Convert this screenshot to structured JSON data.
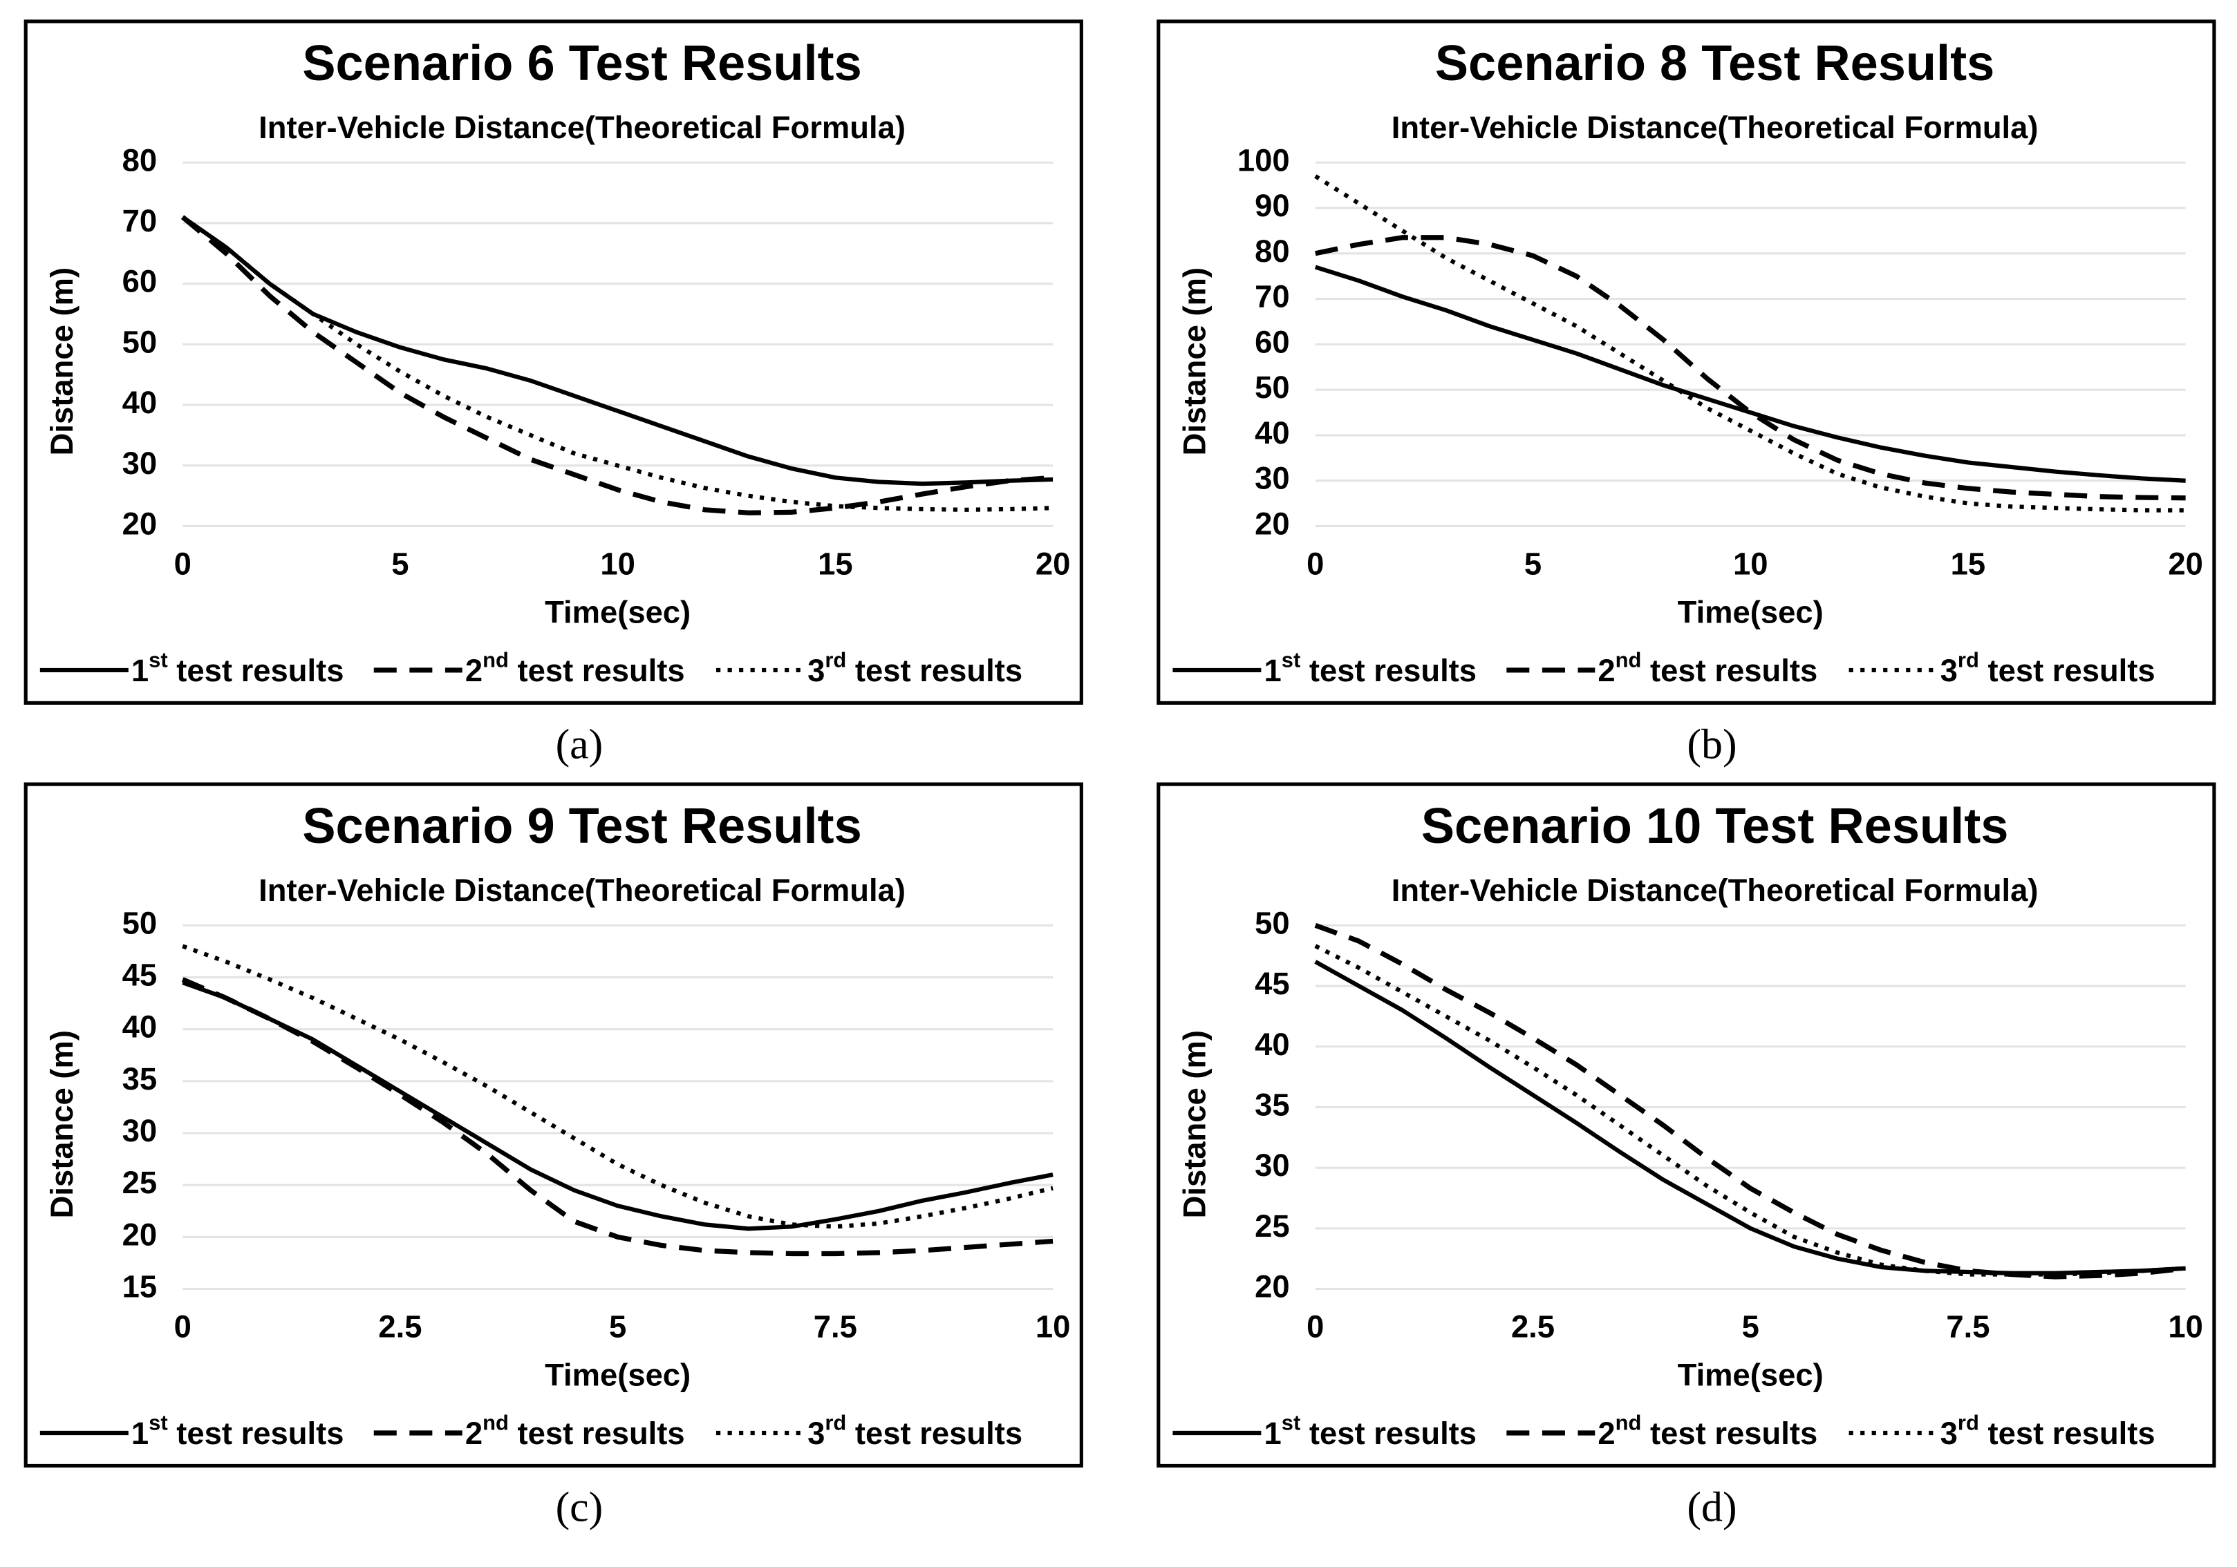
{
  "chart_data": [
    {
      "type": "line",
      "title": "Scenario 6 Test Results",
      "subtitle": "Inter-Vehicle Distance(Theoretical Formula)",
      "caption": "(a)",
      "x_label": "Time(sec)",
      "y_label": "Distance (m)",
      "x": [
        0,
        1,
        2,
        3,
        4,
        5,
        6,
        7,
        8,
        9,
        10,
        11,
        12,
        13,
        14,
        15,
        16,
        17,
        18,
        19,
        20
      ],
      "xlim": [
        0,
        20
      ],
      "xticks": [
        0,
        5,
        10,
        15,
        20
      ],
      "ylim": [
        20,
        80
      ],
      "yticks": [
        20,
        30,
        40,
        50,
        60,
        70,
        80
      ],
      "grid": true,
      "legend": "bottom",
      "series": [
        {
          "name": "1st test results",
          "color": "#000000",
          "style": "solid",
          "values": [
            71,
            66,
            60,
            55,
            52,
            49.5,
            47.5,
            46,
            44,
            41.5,
            39,
            36.5,
            34,
            31.5,
            29.5,
            28,
            27.3,
            27,
            27.2,
            27.5,
            27.7
          ]
        },
        {
          "name": "2nd test results",
          "color": "#000000",
          "style": "dashed",
          "values": [
            71,
            65,
            58,
            52,
            47,
            42,
            38,
            34.5,
            31,
            28.5,
            26,
            24,
            22.7,
            22.2,
            22.3,
            23,
            24,
            25.3,
            26.5,
            27.5,
            28
          ]
        },
        {
          "name": "3rd test results",
          "color": "#000000",
          "style": "dotted",
          "values": [
            71,
            66,
            60,
            55,
            50,
            45.5,
            41.5,
            38,
            35,
            32,
            30,
            28,
            26.3,
            25,
            24,
            23.3,
            23,
            22.8,
            22.7,
            22.8,
            23
          ]
        }
      ]
    },
    {
      "type": "line",
      "title": "Scenario 8 Test Results",
      "subtitle": "Inter-Vehicle Distance(Theoretical Formula)",
      "caption": "(b)",
      "x_label": "Time(sec)",
      "y_label": "Distance (m)",
      "x": [
        0,
        1,
        2,
        3,
        4,
        5,
        6,
        7,
        8,
        9,
        10,
        11,
        12,
        13,
        14,
        15,
        16,
        17,
        18,
        19,
        20
      ],
      "xlim": [
        0,
        20
      ],
      "xticks": [
        0,
        5,
        10,
        15,
        20
      ],
      "ylim": [
        20,
        100
      ],
      "yticks": [
        20,
        30,
        40,
        50,
        60,
        70,
        80,
        90,
        100
      ],
      "grid": true,
      "legend": "bottom",
      "series": [
        {
          "name": "1st test results",
          "color": "#000000",
          "style": "solid",
          "values": [
            77,
            74,
            70.5,
            67.5,
            64,
            61,
            58,
            54.5,
            51,
            48,
            45,
            42,
            39.5,
            37.3,
            35.5,
            34,
            33,
            32,
            31.2,
            30.5,
            30
          ]
        },
        {
          "name": "2nd test results",
          "color": "#000000",
          "style": "dashed",
          "values": [
            80,
            82,
            83.5,
            83.5,
            82,
            79.5,
            75,
            68.5,
            61,
            52.5,
            45,
            39,
            34.5,
            31.5,
            29.5,
            28.3,
            27.5,
            27,
            26.5,
            26.3,
            26.2
          ]
        },
        {
          "name": "3rd test results",
          "color": "#000000",
          "style": "dotted",
          "values": [
            97,
            91,
            85,
            79,
            74,
            69,
            64,
            58,
            52,
            46,
            41,
            36,
            31.5,
            28.5,
            26.5,
            25,
            24.3,
            24,
            23.7,
            23.5,
            23.5
          ]
        }
      ]
    },
    {
      "type": "line",
      "title": "Scenario 9 Test Results",
      "subtitle": "Inter-Vehicle Distance(Theoretical Formula)",
      "caption": "(c)",
      "x_label": "Time(sec)",
      "y_label": "Distance (m)",
      "x": [
        0,
        0.5,
        1,
        1.5,
        2,
        2.5,
        3,
        3.5,
        4,
        4.5,
        5,
        5.5,
        6,
        6.5,
        7,
        7.5,
        8,
        8.5,
        9,
        9.5,
        10
      ],
      "xlim": [
        0,
        10
      ],
      "xticks": [
        0,
        2.5,
        5,
        7.5,
        10
      ],
      "ylim": [
        15,
        50
      ],
      "yticks": [
        15,
        20,
        25,
        30,
        35,
        40,
        45,
        50
      ],
      "grid": true,
      "legend": "bottom",
      "series": [
        {
          "name": "1st test results",
          "color": "#000000",
          "style": "solid",
          "values": [
            44.5,
            43,
            41,
            39,
            36.5,
            34,
            31.5,
            29,
            26.5,
            24.5,
            23,
            22,
            21.2,
            20.8,
            21,
            21.7,
            22.5,
            23.5,
            24.3,
            25.2,
            26
          ]
        },
        {
          "name": "2nd test results",
          "color": "#000000",
          "style": "dashed",
          "values": [
            44.8,
            43,
            41,
            38.8,
            36.3,
            33.7,
            31,
            28,
            24.5,
            21.5,
            20,
            19.2,
            18.7,
            18.5,
            18.4,
            18.4,
            18.5,
            18.7,
            19,
            19.3,
            19.6
          ]
        },
        {
          "name": "3rd test results",
          "color": "#000000",
          "style": "dotted",
          "values": [
            48,
            46.5,
            44.8,
            43,
            41,
            39,
            36.8,
            34.5,
            32,
            29.5,
            27,
            25,
            23.3,
            22,
            21.2,
            21,
            21.3,
            22,
            22.8,
            23.7,
            24.7
          ]
        }
      ]
    },
    {
      "type": "line",
      "title": "Scenario 10 Test Results",
      "subtitle": "Inter-Vehicle Distance(Theoretical Formula)",
      "caption": "(d)",
      "x_label": "Time(sec)",
      "y_label": "Distance (m)",
      "x": [
        0,
        0.5,
        1,
        1.5,
        2,
        2.5,
        3,
        3.5,
        4,
        4.5,
        5,
        5.5,
        6,
        6.5,
        7,
        7.5,
        8,
        8.5,
        9,
        9.5,
        10
      ],
      "xlim": [
        0,
        10
      ],
      "xticks": [
        0,
        2.5,
        5,
        7.5,
        10
      ],
      "ylim": [
        20,
        50
      ],
      "yticks": [
        20,
        25,
        30,
        35,
        40,
        45,
        50
      ],
      "grid": true,
      "legend": "bottom",
      "series": [
        {
          "name": "1st test results",
          "color": "#000000",
          "style": "solid",
          "values": [
            47,
            45,
            43,
            40.7,
            38.3,
            36,
            33.7,
            31.3,
            29,
            27,
            25,
            23.5,
            22.5,
            21.8,
            21.5,
            21.4,
            21.3,
            21.3,
            21.4,
            21.5,
            21.7
          ]
        },
        {
          "name": "2nd test results",
          "color": "#000000",
          "style": "dashed",
          "values": [
            50,
            48.7,
            46.8,
            44.7,
            42.8,
            40.7,
            38.5,
            36,
            33.5,
            30.8,
            28.3,
            26.3,
            24.5,
            23.2,
            22.2,
            21.5,
            21.2,
            21,
            21.1,
            21.3,
            21.7
          ]
        },
        {
          "name": "3rd test results",
          "color": "#000000",
          "style": "dotted",
          "values": [
            48.3,
            46.5,
            44.5,
            42.5,
            40.5,
            38.3,
            36,
            33.5,
            31,
            28.5,
            26.3,
            24.3,
            23,
            22,
            21.5,
            21.2,
            21.2,
            21.2,
            21.3,
            21.5,
            21.7
          ]
        }
      ]
    }
  ]
}
